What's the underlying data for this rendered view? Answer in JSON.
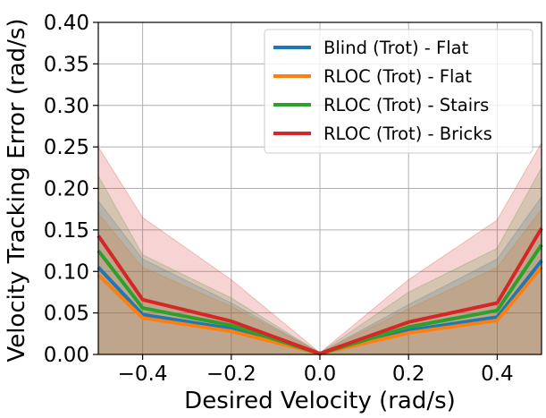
{
  "chart_data": {
    "type": "line",
    "xlabel": "Desired Velocity (rad/s)",
    "ylabel": "Velocity Tracking Error (rad/s)",
    "xlim": [
      -0.5,
      0.5
    ],
    "ylim": [
      0.0,
      0.4
    ],
    "x_ticks": [
      -0.4,
      -0.2,
      0.0,
      0.2,
      0.4
    ],
    "x_tick_labels": [
      "−0.4",
      "−0.2",
      "0.0",
      "0.2",
      "0.4"
    ],
    "y_ticks": [
      0.0,
      0.05,
      0.1,
      0.15,
      0.2,
      0.25,
      0.3,
      0.35,
      0.4
    ],
    "y_tick_labels": [
      "0.00",
      "0.05",
      "0.10",
      "0.15",
      "0.20",
      "0.25",
      "0.30",
      "0.35",
      "0.40"
    ],
    "grid": true,
    "legend_position": "top-right",
    "x": [
      -0.5,
      -0.4,
      -0.2,
      0.0,
      0.2,
      0.4,
      0.5
    ],
    "series": [
      {
        "name": "Blind (Trot) - Flat",
        "color": "#1f77b4",
        "values": [
          0.105,
          0.048,
          0.031,
          0.001,
          0.029,
          0.045,
          0.113
        ],
        "lower": [
          0.0,
          0.0,
          0.0,
          0.0,
          0.0,
          0.0,
          0.0
        ],
        "upper": [
          0.185,
          0.115,
          0.062,
          0.002,
          0.06,
          0.115,
          0.19
        ]
      },
      {
        "name": "RLOC (Trot) - Flat",
        "color": "#ff7f0e",
        "values": [
          0.096,
          0.044,
          0.028,
          0.001,
          0.026,
          0.041,
          0.105
        ],
        "lower": [
          0.0,
          0.0,
          0.0,
          0.0,
          0.0,
          0.0,
          0.0
        ],
        "upper": [
          0.17,
          0.105,
          0.058,
          0.002,
          0.055,
          0.105,
          0.175
        ]
      },
      {
        "name": "RLOC (Trot) - Stairs",
        "color": "#2ca02c",
        "values": [
          0.125,
          0.056,
          0.035,
          0.001,
          0.033,
          0.053,
          0.132
        ],
        "lower": [
          0.0,
          0.0,
          0.0,
          0.0,
          0.0,
          0.0,
          0.0
        ],
        "upper": [
          0.215,
          0.12,
          0.068,
          0.002,
          0.075,
          0.128,
          0.225
        ]
      },
      {
        "name": "RLOC (Trot) - Bricks",
        "color": "#d62728",
        "values": [
          0.143,
          0.066,
          0.04,
          0.001,
          0.039,
          0.062,
          0.152
        ],
        "lower": [
          0.0,
          0.0,
          0.0,
          0.0,
          0.0,
          0.0,
          0.0
        ],
        "upper": [
          0.25,
          0.165,
          0.09,
          0.002,
          0.09,
          0.162,
          0.255
        ]
      }
    ]
  }
}
